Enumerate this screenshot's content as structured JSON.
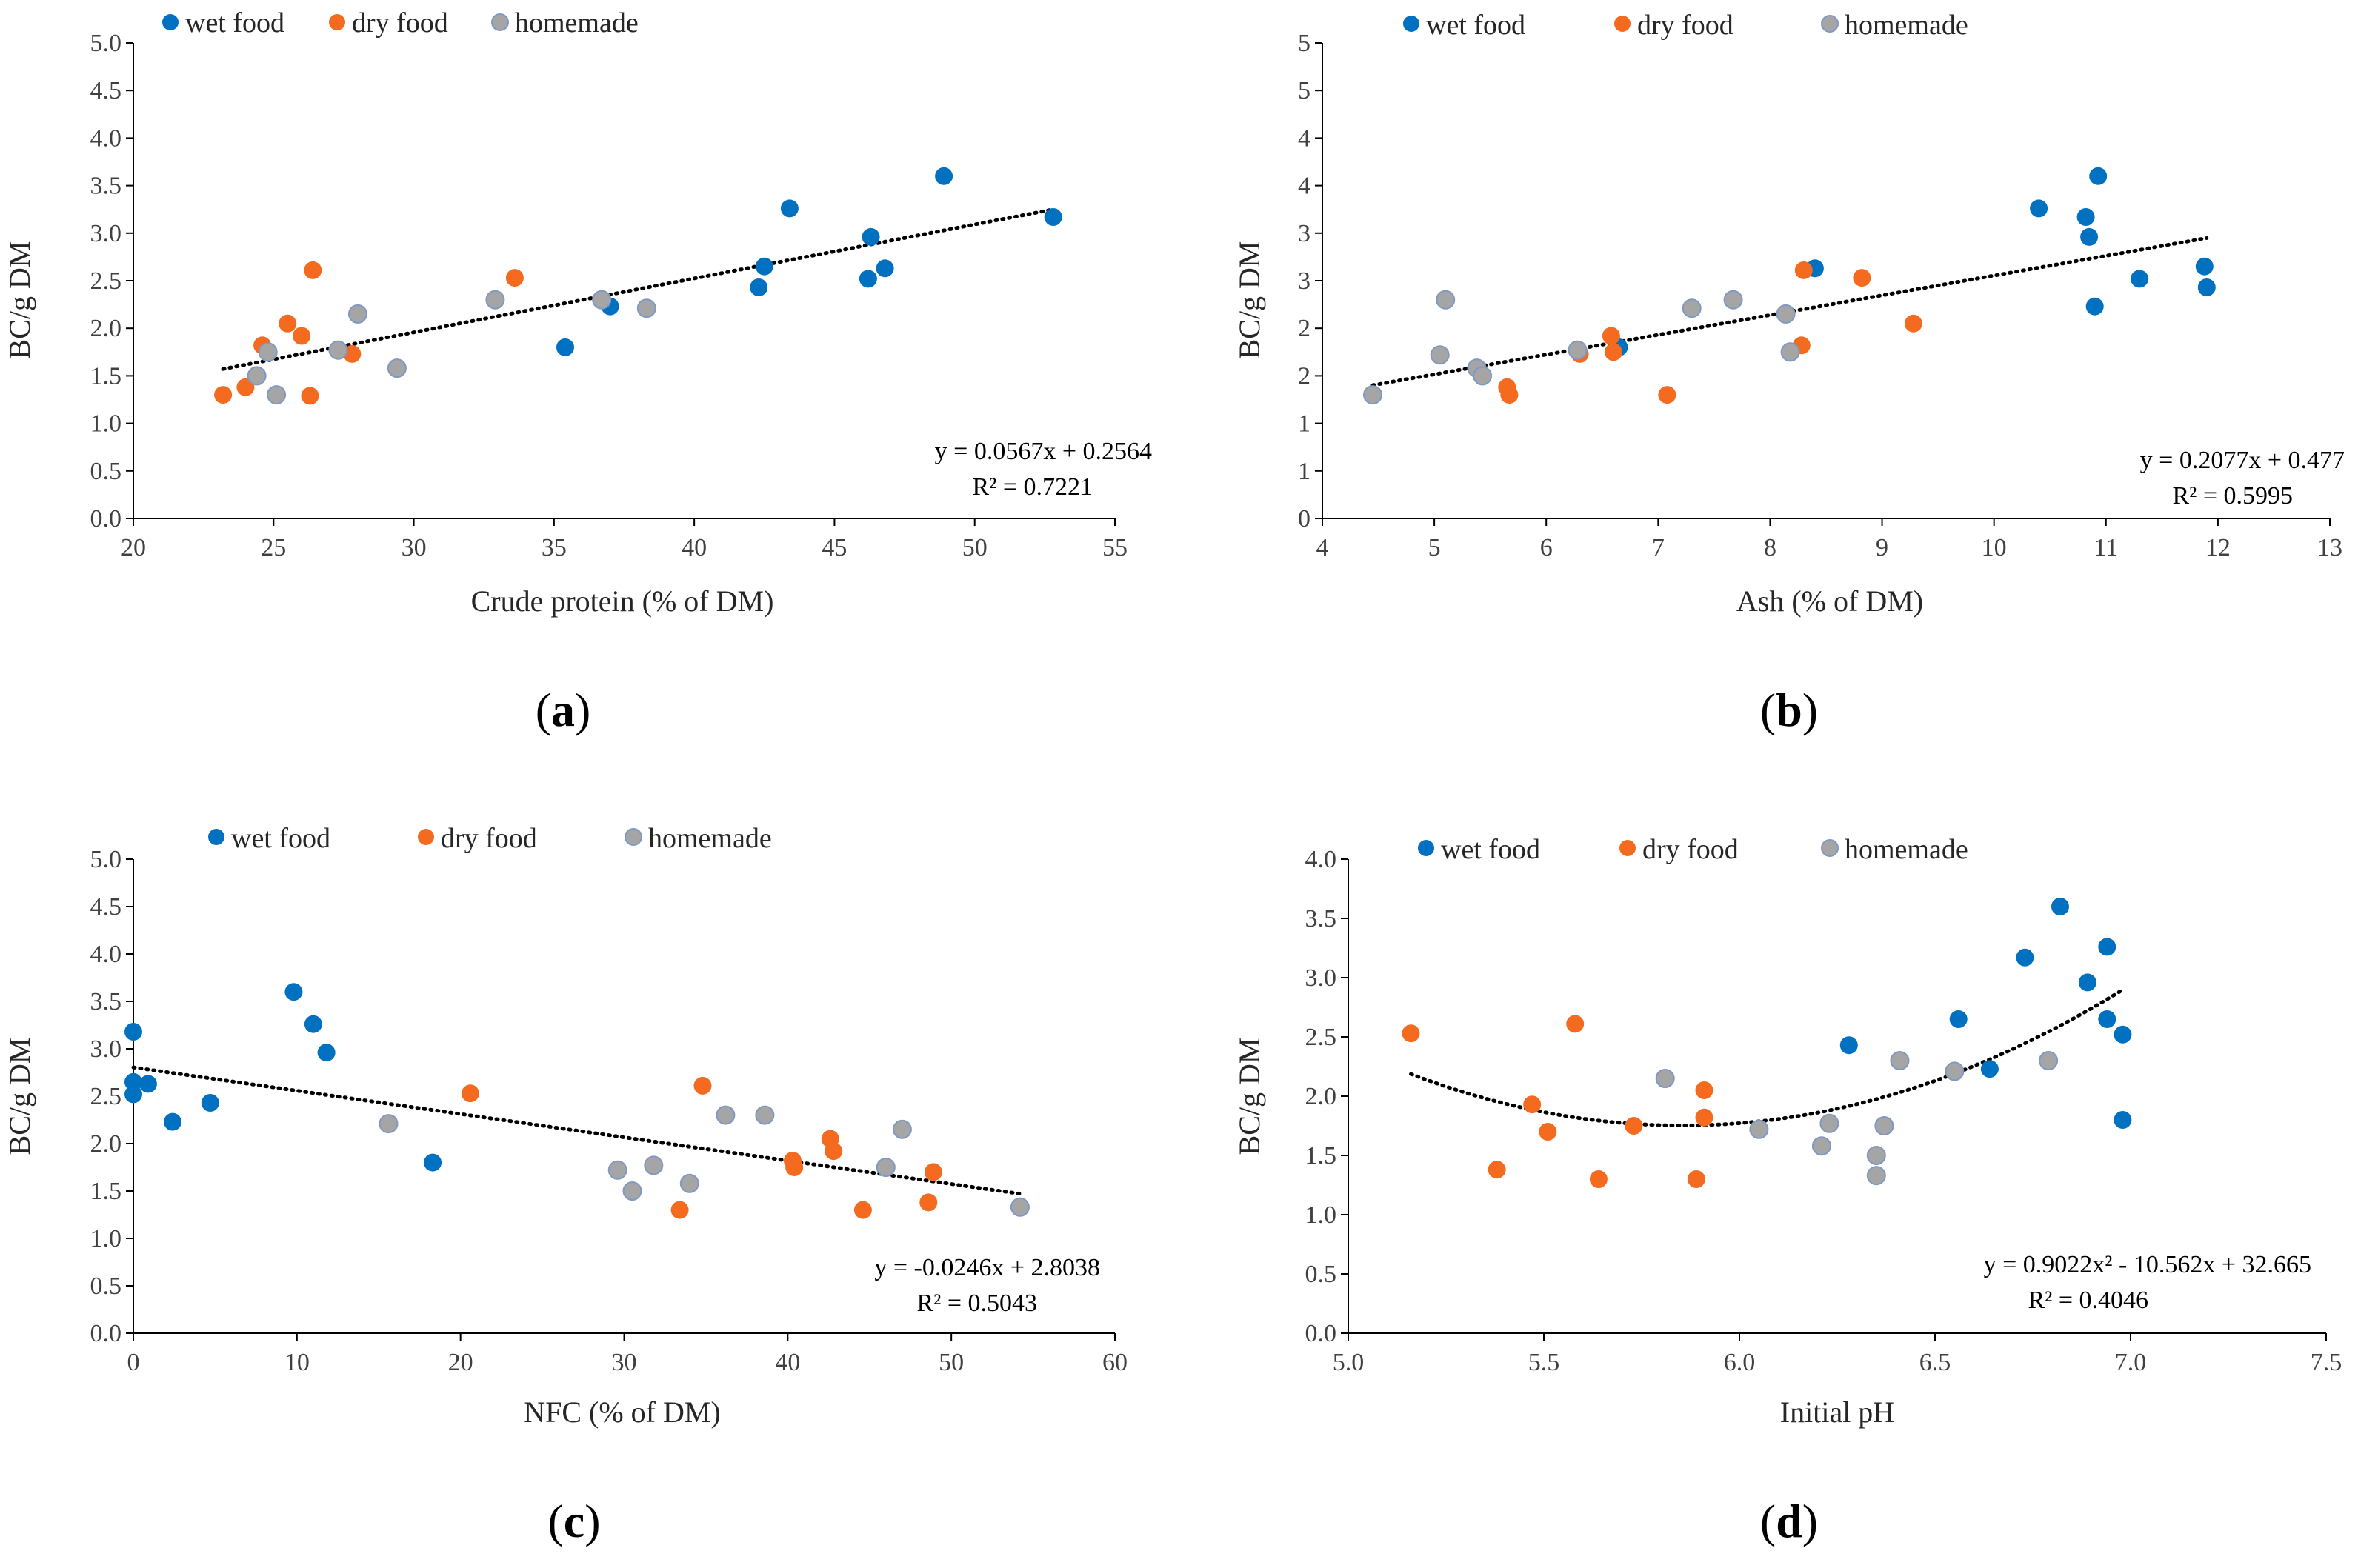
{
  "colors": {
    "wet": "#0070C0",
    "dry": "#F46A1E",
    "home": "#A5A5A5",
    "home_edge": "#7F98C4",
    "axis": "#000000",
    "trend": "#000000"
  },
  "legend": [
    "wet food",
    "dry food",
    "homemade"
  ],
  "chart_data": [
    {
      "type": "scatter",
      "panel_label": "a",
      "xlabel": "Crude protein (% of DM)",
      "ylabel": "BC/g DM",
      "xlim": [
        20,
        55
      ],
      "ylim": [
        0,
        5
      ],
      "xticks": [
        20,
        25,
        30,
        35,
        40,
        45,
        50,
        55
      ],
      "xtick_labels": [
        "20",
        "25",
        "30",
        "35",
        "40",
        "45",
        "50",
        "55"
      ],
      "yticks": [
        0,
        0.5,
        1,
        1.5,
        2,
        2.5,
        3,
        3.5,
        4,
        4.5,
        5
      ],
      "ytick_labels": [
        "0.0",
        "0.5",
        "1.0",
        "1.5",
        "2.0",
        "2.5",
        "3.0",
        "3.5",
        "4.0",
        "4.5",
        "5.0"
      ],
      "equation": "y = 0.0567x + 0.2564",
      "r2": "R² = 0.7221",
      "trend": {
        "kind": "linear",
        "coef": [
          0.0567,
          0.2564
        ],
        "x_range": [
          23.2,
          52.8
        ]
      },
      "series": [
        {
          "name": "wet food",
          "points": [
            [
              35.4,
              1.8
            ],
            [
              37.0,
              2.23
            ],
            [
              42.3,
              2.43
            ],
            [
              42.5,
              2.65
            ],
            [
              43.4,
              3.26
            ],
            [
              46.2,
              2.52
            ],
            [
              46.3,
              2.96
            ],
            [
              46.8,
              2.63
            ],
            [
              48.9,
              3.6
            ],
            [
              52.8,
              3.17
            ]
          ]
        },
        {
          "name": "dry food",
          "points": [
            [
              23.2,
              1.3
            ],
            [
              24.0,
              1.38
            ],
            [
              24.6,
              1.82
            ],
            [
              25.5,
              2.05
            ],
            [
              26.0,
              1.92
            ],
            [
              26.3,
              1.29
            ],
            [
              26.4,
              2.61
            ],
            [
              27.8,
              1.73
            ],
            [
              33.6,
              2.53
            ]
          ]
        },
        {
          "name": "homemade",
          "points": [
            [
              24.4,
              1.5
            ],
            [
              24.8,
              1.75
            ],
            [
              25.1,
              1.3
            ],
            [
              27.3,
              1.77
            ],
            [
              28.0,
              2.15
            ],
            [
              29.4,
              1.58
            ],
            [
              32.9,
              2.3
            ],
            [
              36.7,
              2.3
            ],
            [
              38.3,
              2.21
            ]
          ]
        }
      ]
    },
    {
      "type": "scatter",
      "panel_label": "b",
      "xlabel": "Ash (% of DM)",
      "ylabel": "BC/g DM",
      "xlim": [
        4,
        13
      ],
      "ylim": [
        0,
        5
      ],
      "xticks": [
        4,
        5,
        6,
        7,
        8,
        9,
        10,
        11,
        12,
        13
      ],
      "xtick_labels": [
        "4",
        "5",
        "6",
        "7",
        "8",
        "9",
        "10",
        "11",
        "12",
        "13"
      ],
      "yticks": [
        0,
        0.5,
        1,
        1.5,
        2,
        2.5,
        3,
        3.5,
        4,
        4.5,
        5
      ],
      "ytick_labels": [
        "0",
        "1",
        "1",
        "2",
        "2",
        "3",
        "3",
        "4",
        "4",
        "5",
        "5"
      ],
      "equation": "y = 0.2077x + 0.477",
      "r2": "R² = 0.5995",
      "trend": {
        "kind": "linear",
        "coef": [
          0.2077,
          0.477
        ],
        "x_range": [
          4.45,
          11.9
        ]
      },
      "series": [
        {
          "name": "wet food",
          "points": [
            [
              6.65,
              1.8
            ],
            [
              8.4,
              2.63
            ],
            [
              10.4,
              3.26
            ],
            [
              10.82,
              3.17
            ],
            [
              10.85,
              2.96
            ],
            [
              10.9,
              2.23
            ],
            [
              10.93,
              3.6
            ],
            [
              11.3,
              2.52
            ],
            [
              11.88,
              2.65
            ],
            [
              11.9,
              2.43
            ]
          ]
        },
        {
          "name": "dry food",
          "points": [
            [
              5.65,
              1.38
            ],
            [
              5.67,
              1.3
            ],
            [
              6.3,
              1.73
            ],
            [
              6.58,
              1.92
            ],
            [
              6.6,
              1.75
            ],
            [
              7.08,
              1.3
            ],
            [
              8.28,
              1.82
            ],
            [
              8.3,
              2.61
            ],
            [
              8.82,
              2.53
            ],
            [
              9.28,
              2.05
            ]
          ]
        },
        {
          "name": "homemade",
          "points": [
            [
              4.45,
              1.3
            ],
            [
              5.05,
              1.72
            ],
            [
              5.1,
              2.3
            ],
            [
              5.38,
              1.58
            ],
            [
              5.43,
              1.5
            ],
            [
              6.28,
              1.77
            ],
            [
              7.3,
              2.21
            ],
            [
              7.67,
              2.3
            ],
            [
              8.14,
              2.15
            ],
            [
              8.18,
              1.75
            ]
          ]
        }
      ]
    },
    {
      "type": "scatter",
      "panel_label": "c",
      "xlabel": "NFC (% of DM)",
      "ylabel": "BC/g DM",
      "xlim": [
        0,
        60
      ],
      "ylim": [
        0,
        5
      ],
      "xticks": [
        0,
        10,
        20,
        30,
        40,
        50,
        60
      ],
      "xtick_labels": [
        "0",
        "10",
        "20",
        "30",
        "40",
        "50",
        "60"
      ],
      "yticks": [
        0,
        0.5,
        1,
        1.5,
        2,
        2.5,
        3,
        3.5,
        4,
        4.5,
        5
      ],
      "ytick_labels": [
        "0.0",
        "0.5",
        "1.0",
        "1.5",
        "2.0",
        "2.5",
        "3.0",
        "3.5",
        "4.0",
        "4.5",
        "5.0"
      ],
      "equation": "y = -0.0246x + 2.8038",
      "r2": "R² = 0.5043",
      "trend": {
        "kind": "linear",
        "coef": [
          -0.0246,
          2.8038
        ],
        "x_range": [
          0,
          54.2
        ]
      },
      "series": [
        {
          "name": "wet food",
          "points": [
            [
              0.0,
              3.18
            ],
            [
              0.0,
              2.65
            ],
            [
              0.0,
              2.52
            ],
            [
              0.9,
              2.63
            ],
            [
              2.4,
              2.23
            ],
            [
              4.7,
              2.43
            ],
            [
              9.8,
              3.6
            ],
            [
              11.0,
              3.26
            ],
            [
              11.8,
              2.96
            ],
            [
              18.3,
              1.8
            ]
          ]
        },
        {
          "name": "dry food",
          "points": [
            [
              20.6,
              2.53
            ],
            [
              33.4,
              1.3
            ],
            [
              34.8,
              2.61
            ],
            [
              40.3,
              1.82
            ],
            [
              40.4,
              1.75
            ],
            [
              42.6,
              2.05
            ],
            [
              42.8,
              1.92
            ],
            [
              44.6,
              1.3
            ],
            [
              48.6,
              1.38
            ],
            [
              48.9,
              1.7
            ]
          ]
        },
        {
          "name": "homemade",
          "points": [
            [
              15.6,
              2.21
            ],
            [
              29.6,
              1.72
            ],
            [
              30.5,
              1.5
            ],
            [
              31.8,
              1.77
            ],
            [
              34.0,
              1.58
            ],
            [
              36.2,
              2.3
            ],
            [
              38.6,
              2.3
            ],
            [
              46.0,
              1.75
            ],
            [
              47.0,
              2.15
            ],
            [
              54.2,
              1.33
            ]
          ]
        }
      ]
    },
    {
      "type": "scatter",
      "panel_label": "d",
      "xlabel": "Initial pH",
      "ylabel": "BC/g DM",
      "xlim": [
        5.0,
        7.5
      ],
      "ylim": [
        0,
        4
      ],
      "xticks": [
        5.0,
        5.5,
        6.0,
        6.5,
        7.0,
        7.5
      ],
      "xtick_labels": [
        "5.0",
        "5.5",
        "6.0",
        "6.5",
        "7.0",
        "7.5"
      ],
      "yticks": [
        0,
        0.5,
        1,
        1.5,
        2,
        2.5,
        3,
        3.5,
        4
      ],
      "ytick_labels": [
        "0.0",
        "0.5",
        "1.0",
        "1.5",
        "2.0",
        "2.5",
        "3.0",
        "3.5",
        "4.0"
      ],
      "equation": "y = 0.9022x² - 10.562x + 32.665",
      "r2": "R² = 0.4046",
      "trend": {
        "kind": "quadratic",
        "coef": [
          0.9022,
          -10.562,
          32.665
        ],
        "x_range": [
          5.16,
          6.98
        ]
      },
      "series": [
        {
          "name": "wet food",
          "points": [
            [
              6.28,
              2.43
            ],
            [
              6.56,
              2.65
            ],
            [
              6.64,
              2.23
            ],
            [
              6.73,
              3.17
            ],
            [
              6.82,
              3.6
            ],
            [
              6.89,
              2.96
            ],
            [
              6.94,
              3.26
            ],
            [
              6.94,
              2.65
            ],
            [
              6.98,
              2.52
            ],
            [
              6.98,
              1.8
            ]
          ]
        },
        {
          "name": "dry food",
          "points": [
            [
              5.16,
              2.53
            ],
            [
              5.38,
              1.38
            ],
            [
              5.47,
              1.93
            ],
            [
              5.51,
              1.7
            ],
            [
              5.58,
              2.61
            ],
            [
              5.64,
              1.3
            ],
            [
              5.73,
              1.75
            ],
            [
              5.89,
              1.3
            ],
            [
              5.91,
              2.05
            ],
            [
              5.91,
              1.82
            ]
          ]
        },
        {
          "name": "homemade",
          "points": [
            [
              5.81,
              2.15
            ],
            [
              6.05,
              1.72
            ],
            [
              6.21,
              1.58
            ],
            [
              6.23,
              1.77
            ],
            [
              6.35,
              1.33
            ],
            [
              6.35,
              1.5
            ],
            [
              6.37,
              1.75
            ],
            [
              6.41,
              2.3
            ],
            [
              6.55,
              2.21
            ],
            [
              6.79,
              2.3
            ]
          ]
        }
      ]
    }
  ]
}
